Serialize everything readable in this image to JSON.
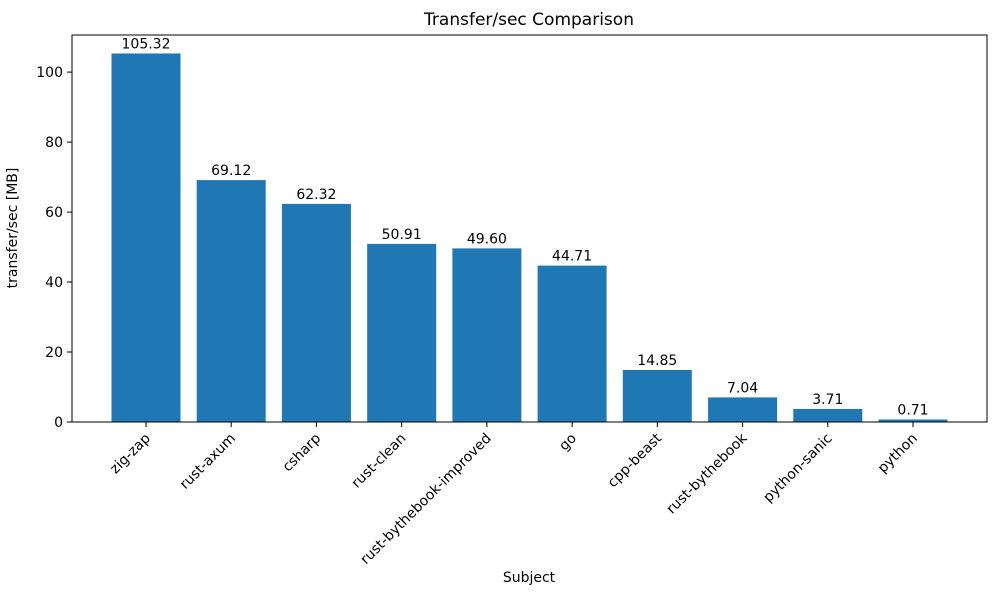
{
  "figure": {
    "background": "#ffffff",
    "text_color": "#000000",
    "spine_color": "#000000"
  },
  "chart_data": {
    "type": "bar",
    "title": "Transfer/sec Comparison",
    "xlabel": "Subject",
    "ylabel": "transfer/sec [MB]",
    "categories": [
      "zig-zap",
      "rust-axum",
      "csharp",
      "rust-clean",
      "rust-bythebook-improved",
      "go",
      "cpp-beast",
      "rust-bythebook",
      "python-sanic",
      "python"
    ],
    "values": [
      105.32,
      69.12,
      62.32,
      50.91,
      49.6,
      44.71,
      14.85,
      7.04,
      3.71,
      0.71
    ],
    "value_labels": [
      "105.32",
      "69.12",
      "62.32",
      "50.91",
      "49.60",
      "44.71",
      "14.85",
      "7.04",
      "3.71",
      "0.71"
    ],
    "bar_color": "#1f77b4",
    "ylim": [
      0,
      110.6
    ],
    "yticks": [
      0,
      20,
      40,
      60,
      80,
      100
    ],
    "xtick_rotation_deg": 45,
    "grid": false,
    "legend": null
  }
}
